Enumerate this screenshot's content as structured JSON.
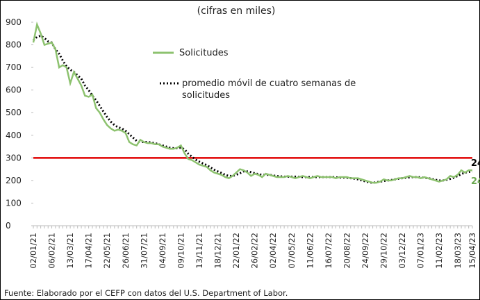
{
  "chart_data": {
    "type": "line",
    "subtitle": "(cifras en miles)",
    "source": "Fuente: Elaborado por el CEFP con datos del U.S. Department of Labor.",
    "categories": [
      "02/01/21",
      null,
      null,
      null,
      null,
      "06/02/21",
      null,
      null,
      null,
      null,
      "13/03/21",
      null,
      null,
      null,
      null,
      "17/04/21",
      null,
      null,
      null,
      null,
      "22/05/21",
      null,
      null,
      null,
      null,
      "26/06/21",
      null,
      null,
      null,
      null,
      "31/07/21",
      null,
      null,
      null,
      null,
      "04/09/21",
      null,
      null,
      null,
      null,
      "09/10/21",
      null,
      null,
      null,
      null,
      "13/11/21",
      null,
      null,
      null,
      null,
      "18/12/21",
      null,
      null,
      null,
      null,
      "22/01/22",
      null,
      null,
      null,
      null,
      "26/02/22",
      null,
      null,
      null,
      null,
      "02/04/22",
      null,
      null,
      null,
      null,
      "07/05/22",
      null,
      null,
      null,
      null,
      "11/06/22",
      null,
      null,
      null,
      null,
      "16/07/22",
      null,
      null,
      null,
      null,
      "20/08/22",
      null,
      null,
      null,
      null,
      "24/09/22",
      null,
      null,
      null,
      null,
      "29/10/22",
      null,
      null,
      null,
      null,
      "03/12/22",
      null,
      null,
      null,
      null,
      "07/01/23",
      null,
      null,
      null,
      null,
      "11/02/23",
      null,
      null,
      null,
      null,
      "18/03/23",
      null,
      null,
      null,
      "15/04/23"
    ],
    "series": [
      {
        "name": "Solicitudes",
        "color": "#8dc26f",
        "style": "solid",
        "values": [
          810,
          890,
          850,
          800,
          805,
          810,
          780,
          700,
          710,
          700,
          630,
          680,
          650,
          620,
          575,
          570,
          580,
          520,
          500,
          470,
          445,
          430,
          420,
          425,
          420,
          410,
          370,
          360,
          355,
          380,
          370,
          365,
          365,
          360,
          360,
          350,
          345,
          340,
          340,
          345,
          355,
          320,
          295,
          290,
          280,
          270,
          265,
          260,
          245,
          235,
          230,
          225,
          215,
          210,
          220,
          235,
          250,
          245,
          235,
          220,
          230,
          225,
          215,
          230,
          225,
          220,
          215,
          215,
          215,
          220,
          215,
          210,
          215,
          220,
          215,
          210,
          215,
          220,
          215,
          215,
          215,
          215,
          210,
          215,
          215,
          215,
          210,
          210,
          210,
          205,
          200,
          195,
          190,
          190,
          195,
          205,
          200,
          200,
          205,
          210,
          210,
          215,
          220,
          215,
          215,
          210,
          215,
          210,
          205,
          200,
          195,
          200,
          205,
          220,
          215,
          225,
          245,
          235,
          245,
          245
        ]
      },
      {
        "name": "promedio móvil de cuatro semanas de solicitudes",
        "color": "#000000",
        "style": "dotted",
        "values": [
          820,
          835,
          840,
          830,
          815,
          810,
          780,
          760,
          730,
          705,
          690,
          680,
          665,
          650,
          620,
          600,
          575,
          555,
          530,
          505,
          480,
          460,
          445,
          435,
          430,
          420,
          405,
          390,
          375,
          370,
          370,
          370,
          368,
          365,
          360,
          355,
          350,
          345,
          343,
          343,
          345,
          338,
          318,
          305,
          292,
          283,
          275,
          268,
          258,
          248,
          240,
          233,
          225,
          220,
          220,
          225,
          232,
          240,
          240,
          237,
          232,
          228,
          225,
          225,
          225,
          222,
          220,
          218,
          217,
          217,
          217,
          217,
          216,
          215,
          215,
          215,
          215,
          215,
          215,
          215,
          215,
          215,
          214,
          213,
          213,
          212,
          210,
          208,
          205,
          200,
          196,
          192,
          190,
          192,
          195,
          198,
          200,
          202,
          205,
          208,
          210,
          212,
          214,
          215,
          215,
          214,
          212,
          210,
          207,
          203,
          200,
          200,
          203,
          207,
          212,
          220,
          228,
          235,
          238,
          240
        ]
      }
    ],
    "reference_line": {
      "value": 300,
      "color": "#e00000"
    },
    "ylim": [
      0,
      900
    ],
    "yticks": [
      0,
      100,
      200,
      300,
      400,
      500,
      600,
      700,
      800,
      900
    ],
    "grid": false
  }
}
